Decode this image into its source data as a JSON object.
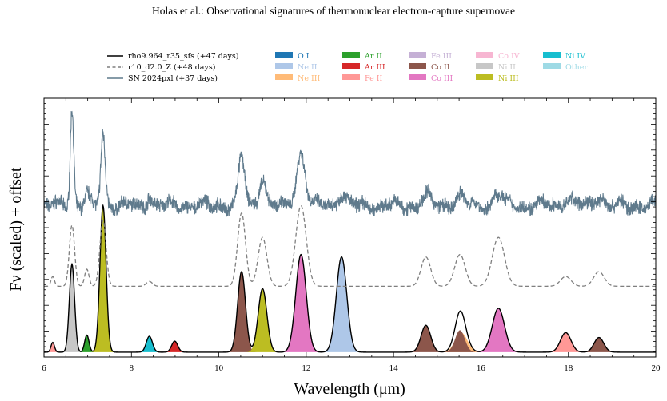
{
  "header": {
    "running_title": "Holas et al.: Observational signatures of thermonuclear electron-capture supernovae"
  },
  "chart_data": {
    "type": "area",
    "xlabel": "Wavelength (μm)",
    "ylabel": "Fν (scaled) + offset",
    "xlim": [
      6,
      20
    ],
    "x_ticks": [
      "6",
      "8",
      "10",
      "12",
      "14",
      "16",
      "18",
      "20"
    ],
    "y_tick_labels": false,
    "legend_placement": "top",
    "line_series": [
      {
        "name": "rho9.964_r35_sfs (+47 days)",
        "color": "#000000",
        "style": "solid",
        "kind": "model"
      },
      {
        "name": "r10_d2.0_Z (+48 days)",
        "color": "#7f7f7f",
        "style": "dashed",
        "kind": "model"
      },
      {
        "name": "SN 2024pxl (+37 days)",
        "color": "#5f7a8c",
        "style": "solid",
        "kind": "observed"
      }
    ],
    "ion_legend": [
      {
        "name": "O I",
        "color": "#1f77b4"
      },
      {
        "name": "Ne II",
        "color": "#aec7e8"
      },
      {
        "name": "Ne III",
        "color": "#ffbb78"
      },
      {
        "name": "Ar II",
        "color": "#2ca02c"
      },
      {
        "name": "Ar III",
        "color": "#d62728"
      },
      {
        "name": "Fe II",
        "color": "#ff9896"
      },
      {
        "name": "Fe III",
        "color": "#c5b0d5"
      },
      {
        "name": "Co II",
        "color": "#8c564b"
      },
      {
        "name": "Co III",
        "color": "#e377c2"
      },
      {
        "name": "Co IV",
        "color": "#f7b6d2"
      },
      {
        "name": "Ni II",
        "color": "#c7c7c7"
      },
      {
        "name": "Ni III",
        "color": "#bcbd22"
      },
      {
        "name": "Ni IV",
        "color": "#17becf"
      },
      {
        "name": "Other",
        "color": "#9edae5"
      }
    ],
    "model_solid_components": [
      {
        "ion": "Fe II",
        "center": 6.2,
        "height": 0.04,
        "width": 0.04
      },
      {
        "ion": "Ni II",
        "center": 6.64,
        "height": 0.36,
        "width": 0.06
      },
      {
        "ion": "Ar II",
        "center": 6.98,
        "height": 0.07,
        "width": 0.05
      },
      {
        "ion": "Ni III",
        "center": 7.35,
        "height": 0.6,
        "width": 0.07
      },
      {
        "ion": "Ni IV",
        "center": 8.41,
        "height": 0.065,
        "width": 0.07
      },
      {
        "ion": "Ar III",
        "center": 8.99,
        "height": 0.045,
        "width": 0.07
      },
      {
        "ion": "Co II",
        "center": 10.52,
        "height": 0.33,
        "width": 0.09
      },
      {
        "ion": "Ni III",
        "center": 11.0,
        "height": 0.26,
        "width": 0.1
      },
      {
        "ion": "Co III",
        "center": 11.88,
        "height": 0.4,
        "width": 0.12
      },
      {
        "ion": "Ne II",
        "center": 12.81,
        "height": 0.39,
        "width": 0.12
      },
      {
        "ion": "Co II",
        "center": 14.74,
        "height": 0.11,
        "width": 0.11
      },
      {
        "ion": "Ne III",
        "center": 15.55,
        "height": 0.08,
        "width": 0.14
      },
      {
        "ion": "Co II",
        "center": 15.52,
        "height": 0.09,
        "width": 0.11
      },
      {
        "ion": "Co III",
        "center": 16.4,
        "height": 0.18,
        "width": 0.14
      },
      {
        "ion": "Fe II",
        "center": 17.94,
        "height": 0.08,
        "width": 0.12
      },
      {
        "ion": "Co II",
        "center": 18.7,
        "height": 0.06,
        "width": 0.11
      }
    ],
    "model_dashed_peaks": [
      {
        "center": 6.2,
        "height": 0.04,
        "width": 0.04
      },
      {
        "center": 6.64,
        "height": 0.25,
        "width": 0.06
      },
      {
        "center": 6.98,
        "height": 0.07,
        "width": 0.05
      },
      {
        "center": 7.35,
        "height": 0.27,
        "width": 0.07
      },
      {
        "center": 8.41,
        "height": 0.02,
        "width": 0.07
      },
      {
        "center": 10.52,
        "height": 0.3,
        "width": 0.09
      },
      {
        "center": 11.0,
        "height": 0.2,
        "width": 0.1
      },
      {
        "center": 11.88,
        "height": 0.33,
        "width": 0.12
      },
      {
        "center": 14.74,
        "height": 0.12,
        "width": 0.11
      },
      {
        "center": 15.52,
        "height": 0.13,
        "width": 0.12
      },
      {
        "center": 16.4,
        "height": 0.2,
        "width": 0.14
      },
      {
        "center": 17.94,
        "height": 0.04,
        "width": 0.12
      },
      {
        "center": 18.7,
        "height": 0.06,
        "width": 0.12
      }
    ],
    "observed_peaks": [
      {
        "center": 6.64,
        "height": 0.4,
        "width": 0.04
      },
      {
        "center": 6.98,
        "height": 0.05,
        "width": 0.05
      },
      {
        "center": 7.35,
        "height": 0.3,
        "width": 0.05
      },
      {
        "center": 8.41,
        "height": 0.05,
        "width": 0.05
      },
      {
        "center": 10.52,
        "height": 0.2,
        "width": 0.07
      },
      {
        "center": 11.0,
        "height": 0.11,
        "width": 0.08
      },
      {
        "center": 11.88,
        "height": 0.22,
        "width": 0.1
      },
      {
        "center": 12.81,
        "height": 0.05,
        "width": 0.1
      },
      {
        "center": 14.74,
        "height": 0.04,
        "width": 0.1
      },
      {
        "center": 15.52,
        "height": 0.04,
        "width": 0.1
      },
      {
        "center": 16.4,
        "height": 0.05,
        "width": 0.1
      },
      {
        "center": 18.0,
        "height": 0.03,
        "width": 0.1
      },
      {
        "center": 18.7,
        "height": 0.04,
        "width": 0.1
      }
    ],
    "baselines": {
      "solid": 0.0,
      "dashed": 0.27,
      "observed": 0.6
    },
    "ylim": [
      -0.02,
      1.04
    ]
  }
}
